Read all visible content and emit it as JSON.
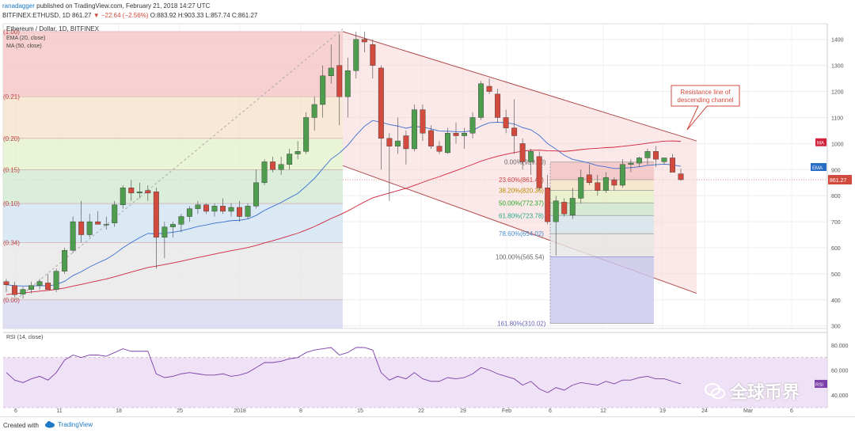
{
  "header": {
    "user": "ranadagger",
    "published": "published on TradingView.com, February 21, 2018 14:27 UTC",
    "symbol": "BITFINEX:ETHUSD, 1D",
    "price": "861.27",
    "change": "▼ −22.64 (−2.56%)",
    "ohlc": "O:883.92 H:903.33 L:857.74 C:861.27"
  },
  "footer": {
    "created_with": "Created with",
    "brand": "TradingView"
  },
  "watermark": {
    "text": "全球币界"
  },
  "chart_data": {
    "type": "candlestick",
    "title": "Ethereum / Dollar, 1D, BITFINEX",
    "indicators": [
      "EMA (20, close)",
      "MA (50, close)"
    ],
    "x_ticks": [
      "6",
      "11",
      "18",
      "25",
      "2018",
      "8",
      "15",
      "22",
      "29",
      "Feb",
      "6",
      "12",
      "19",
      "24",
      "Mar",
      "6"
    ],
    "y_ticks": [
      300,
      400,
      500,
      600,
      700,
      800,
      900,
      1000,
      1100,
      1200,
      1300,
      1400
    ],
    "ylim": [
      290,
      1460
    ],
    "current_price": "861.27",
    "tags": {
      "ma": "MA",
      "ema": "EMA"
    },
    "candles": [
      {
        "o": 470,
        "h": 480,
        "l": 430,
        "c": 458
      },
      {
        "o": 455,
        "h": 470,
        "l": 410,
        "c": 420
      },
      {
        "o": 422,
        "h": 450,
        "l": 405,
        "c": 440
      },
      {
        "o": 440,
        "h": 470,
        "l": 425,
        "c": 455
      },
      {
        "o": 455,
        "h": 480,
        "l": 440,
        "c": 470
      },
      {
        "o": 465,
        "h": 500,
        "l": 450,
        "c": 440
      },
      {
        "o": 440,
        "h": 520,
        "l": 430,
        "c": 510
      },
      {
        "o": 510,
        "h": 600,
        "l": 500,
        "c": 590
      },
      {
        "o": 590,
        "h": 720,
        "l": 580,
        "c": 700
      },
      {
        "o": 700,
        "h": 780,
        "l": 620,
        "c": 650
      },
      {
        "o": 650,
        "h": 730,
        "l": 640,
        "c": 700
      },
      {
        "o": 700,
        "h": 740,
        "l": 690,
        "c": 690
      },
      {
        "o": 690,
        "h": 720,
        "l": 670,
        "c": 690
      },
      {
        "o": 695,
        "h": 780,
        "l": 680,
        "c": 765
      },
      {
        "o": 765,
        "h": 840,
        "l": 750,
        "c": 830
      },
      {
        "o": 830,
        "h": 860,
        "l": 780,
        "c": 810
      },
      {
        "o": 810,
        "h": 850,
        "l": 790,
        "c": 815
      },
      {
        "o": 820,
        "h": 840,
        "l": 780,
        "c": 810
      },
      {
        "o": 815,
        "h": 830,
        "l": 520,
        "c": 640
      },
      {
        "o": 640,
        "h": 700,
        "l": 560,
        "c": 680
      },
      {
        "o": 680,
        "h": 700,
        "l": 640,
        "c": 690
      },
      {
        "o": 690,
        "h": 730,
        "l": 660,
        "c": 720
      },
      {
        "o": 720,
        "h": 760,
        "l": 700,
        "c": 750
      },
      {
        "o": 750,
        "h": 780,
        "l": 730,
        "c": 765
      },
      {
        "o": 765,
        "h": 770,
        "l": 730,
        "c": 740
      },
      {
        "o": 740,
        "h": 770,
        "l": 720,
        "c": 760
      },
      {
        "o": 760,
        "h": 790,
        "l": 730,
        "c": 740
      },
      {
        "o": 740,
        "h": 770,
        "l": 720,
        "c": 755
      },
      {
        "o": 755,
        "h": 780,
        "l": 700,
        "c": 720
      },
      {
        "o": 720,
        "h": 770,
        "l": 710,
        "c": 760
      },
      {
        "o": 760,
        "h": 900,
        "l": 750,
        "c": 850
      },
      {
        "o": 850,
        "h": 940,
        "l": 840,
        "c": 930
      },
      {
        "o": 930,
        "h": 950,
        "l": 890,
        "c": 900
      },
      {
        "o": 900,
        "h": 950,
        "l": 880,
        "c": 920
      },
      {
        "o": 920,
        "h": 980,
        "l": 900,
        "c": 960
      },
      {
        "o": 960,
        "h": 1010,
        "l": 940,
        "c": 970
      },
      {
        "o": 970,
        "h": 1120,
        "l": 960,
        "c": 1100
      },
      {
        "o": 1100,
        "h": 1180,
        "l": 1050,
        "c": 1150
      },
      {
        "o": 1150,
        "h": 1300,
        "l": 1100,
        "c": 1260
      },
      {
        "o": 1260,
        "h": 1380,
        "l": 1230,
        "c": 1290
      },
      {
        "o": 1300,
        "h": 1420,
        "l": 1070,
        "c": 1180
      },
      {
        "o": 1180,
        "h": 1330,
        "l": 1100,
        "c": 1280
      },
      {
        "o": 1280,
        "h": 1430,
        "l": 1250,
        "c": 1400
      },
      {
        "o": 1400,
        "h": 1430,
        "l": 1350,
        "c": 1390
      },
      {
        "o": 1380,
        "h": 1400,
        "l": 1250,
        "c": 1300
      },
      {
        "o": 1290,
        "h": 1300,
        "l": 900,
        "c": 1020
      },
      {
        "o": 1020,
        "h": 1040,
        "l": 780,
        "c": 990
      },
      {
        "o": 990,
        "h": 1100,
        "l": 960,
        "c": 1010
      },
      {
        "o": 1030,
        "h": 1050,
        "l": 920,
        "c": 980
      },
      {
        "o": 980,
        "h": 1150,
        "l": 970,
        "c": 1130
      },
      {
        "o": 1130,
        "h": 1150,
        "l": 1010,
        "c": 1040
      },
      {
        "o": 1050,
        "h": 1070,
        "l": 980,
        "c": 990
      },
      {
        "o": 990,
        "h": 1010,
        "l": 960,
        "c": 970
      },
      {
        "o": 965,
        "h": 1060,
        "l": 960,
        "c": 1040
      },
      {
        "o": 1040,
        "h": 1080,
        "l": 1000,
        "c": 1030
      },
      {
        "o": 1030,
        "h": 1060,
        "l": 980,
        "c": 1040
      },
      {
        "o": 1040,
        "h": 1120,
        "l": 1020,
        "c": 1100
      },
      {
        "o": 1100,
        "h": 1240,
        "l": 1090,
        "c": 1230
      },
      {
        "o": 1220,
        "h": 1250,
        "l": 1190,
        "c": 1200
      },
      {
        "o": 1190,
        "h": 1210,
        "l": 1080,
        "c": 1100
      },
      {
        "o": 1100,
        "h": 1130,
        "l": 1040,
        "c": 1060
      },
      {
        "o": 1060,
        "h": 1170,
        "l": 960,
        "c": 1030
      },
      {
        "o": 1000,
        "h": 1020,
        "l": 900,
        "c": 930
      },
      {
        "o": 930,
        "h": 980,
        "l": 880,
        "c": 970
      },
      {
        "o": 950,
        "h": 970,
        "l": 820,
        "c": 830
      },
      {
        "o": 830,
        "h": 880,
        "l": 690,
        "c": 700
      },
      {
        "o": 700,
        "h": 800,
        "l": 570,
        "c": 780
      },
      {
        "o": 775,
        "h": 790,
        "l": 720,
        "c": 730
      },
      {
        "o": 725,
        "h": 830,
        "l": 710,
        "c": 790
      },
      {
        "o": 790,
        "h": 900,
        "l": 770,
        "c": 870
      },
      {
        "o": 880,
        "h": 920,
        "l": 840,
        "c": 850
      },
      {
        "o": 850,
        "h": 880,
        "l": 800,
        "c": 820
      },
      {
        "o": 820,
        "h": 890,
        "l": 810,
        "c": 870
      },
      {
        "o": 860,
        "h": 870,
        "l": 820,
        "c": 840
      },
      {
        "o": 840,
        "h": 940,
        "l": 830,
        "c": 920
      },
      {
        "o": 920,
        "h": 940,
        "l": 890,
        "c": 925
      },
      {
        "o": 925,
        "h": 950,
        "l": 910,
        "c": 945
      },
      {
        "o": 945,
        "h": 980,
        "l": 920,
        "c": 970
      },
      {
        "o": 970,
        "h": 990,
        "l": 910,
        "c": 940
      },
      {
        "o": 930,
        "h": 940,
        "l": 920,
        "c": 945
      },
      {
        "o": 945,
        "h": 960,
        "l": 890,
        "c": 890
      },
      {
        "o": 883.92,
        "h": 903.33,
        "l": 857.74,
        "c": 861.27
      }
    ],
    "fib_left_labels": [
      "(1.00)",
      "(0.21)",
      "(0.20)",
      "(0.15)",
      "(0.10)",
      "(0.34)",
      "(0.00)"
    ],
    "fib_levels": [
      {
        "label": "0.00%(929.00)",
        "price": 929
      },
      {
        "label": "23.60%(861.42)",
        "price": 861.42
      },
      {
        "label": "38.20%(820.36)",
        "price": 820.36
      },
      {
        "label": "50.00%(772.37)",
        "price": 772.37
      },
      {
        "label": "61.80%(723.78)",
        "price": 723.78
      },
      {
        "label": "78.60%(654.02)",
        "price": 654.02
      },
      {
        "label": "100.00%(565.54)",
        "price": 565.54
      },
      {
        "label": "161.80%(310.02)",
        "price": 310.02
      }
    ],
    "annotation": "Resistance line of descending channel",
    "rsi": {
      "title": "RSI (14, close)",
      "ticks": [
        40,
        60,
        80
      ],
      "ylim": [
        30,
        90
      ],
      "tag": "RSI",
      "values": [
        58,
        52,
        50,
        53,
        55,
        52,
        58,
        68,
        72,
        70,
        72,
        72,
        71,
        74,
        77,
        75,
        75,
        75,
        57,
        54,
        55,
        57,
        58,
        57,
        56,
        56,
        57,
        55,
        56,
        58,
        62,
        66,
        66,
        67,
        69,
        70,
        74,
        76,
        77,
        78,
        72,
        74,
        78,
        78,
        76,
        58,
        52,
        55,
        53,
        58,
        53,
        51,
        51,
        54,
        53,
        54,
        57,
        62,
        60,
        57,
        55,
        53,
        48,
        51,
        45,
        42,
        46,
        44,
        48,
        50,
        49,
        48,
        51,
        49,
        52,
        52,
        54,
        55,
        53,
        53,
        51,
        49
      ]
    }
  }
}
